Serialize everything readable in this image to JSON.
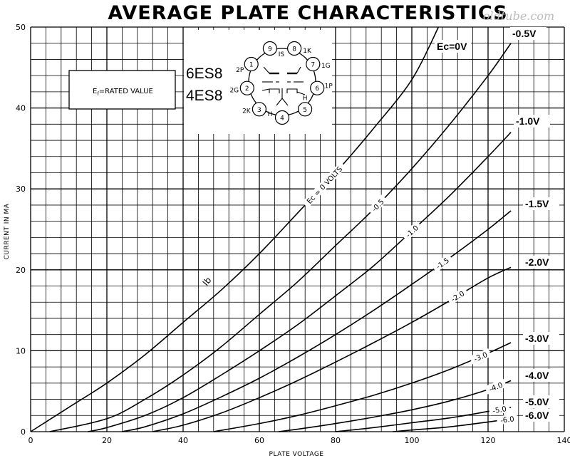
{
  "chart_data": {
    "type": "line",
    "title": "AVERAGE PLATE CHARACTERISTICS",
    "xlabel": "PLATE VOLTAGE",
    "ylabel": "CURRENT IN MA",
    "xlim": [
      0,
      140
    ],
    "ylim": [
      0,
      50
    ],
    "x_ticks": [
      0,
      20,
      40,
      60,
      80,
      100,
      120,
      140
    ],
    "y_ticks": [
      0,
      10,
      20,
      30,
      40,
      50
    ],
    "grid": true,
    "curve_variable": "Ib",
    "series": [
      {
        "name": "Ec=0",
        "inline_label": "Ec = 0 VOLTS",
        "right_label": "Ec=0V",
        "x": [
          0,
          10,
          20,
          30,
          40,
          50,
          60,
          70,
          80,
          90,
          100,
          107
        ],
        "y": [
          0,
          3.0,
          6.0,
          9.5,
          13.5,
          17.5,
          22,
          27,
          32,
          37.5,
          43.5,
          50
        ]
      },
      {
        "name": "-0.5",
        "inline_label": "-0.5",
        "right_label": "-0.5V",
        "x": [
          5,
          20,
          30,
          40,
          50,
          60,
          70,
          80,
          90,
          100,
          110,
          120,
          126
        ],
        "y": [
          0,
          1.6,
          4.0,
          7.0,
          10.5,
          14.5,
          18.5,
          23,
          27.5,
          32.5,
          38,
          44,
          48
        ]
      },
      {
        "name": "-1.0",
        "inline_label": "-1.0",
        "right_label": "-1.0V",
        "x": [
          15,
          20,
          30,
          40,
          50,
          60,
          70,
          80,
          90,
          100,
          110,
          120,
          126
        ],
        "y": [
          0,
          0.5,
          2.0,
          4.2,
          7.0,
          10.0,
          13.2,
          16.8,
          20.5,
          24.8,
          29.2,
          34,
          37
        ]
      },
      {
        "name": "-1.5",
        "inline_label": "-1.5",
        "right_label": "-1.5V",
        "x": [
          24,
          30,
          40,
          50,
          60,
          70,
          80,
          90,
          100,
          110,
          120,
          126
        ],
        "y": [
          0,
          0.6,
          2.2,
          4.3,
          6.6,
          9.2,
          12.0,
          15.0,
          18.2,
          21.5,
          25.0,
          27.3
        ]
      },
      {
        "name": "-2.0",
        "inline_label": "-2.0",
        "right_label": "-2.0V",
        "x": [
          32,
          40,
          50,
          60,
          70,
          80,
          90,
          100,
          110,
          120,
          126
        ],
        "y": [
          0,
          0.8,
          2.3,
          4.2,
          6.3,
          8.6,
          11.0,
          13.5,
          16.2,
          19.0,
          20.3
        ]
      },
      {
        "name": "-3.0",
        "inline_label": "-3.0",
        "right_label": "-3.0V",
        "x": [
          48,
          60,
          70,
          80,
          90,
          100,
          110,
          120,
          126
        ],
        "y": [
          0,
          1.0,
          2.0,
          3.2,
          4.5,
          6.0,
          7.7,
          9.7,
          11.0
        ]
      },
      {
        "name": "-4.0",
        "inline_label": "-4.0",
        "right_label": "-4.0V",
        "x": [
          65,
          70,
          80,
          90,
          100,
          110,
          120,
          126
        ],
        "y": [
          0,
          0.3,
          1.0,
          1.8,
          2.7,
          3.8,
          5.2,
          6.3
        ]
      },
      {
        "name": "-5.0",
        "inline_label": "-5.0",
        "right_label": "-5.0V",
        "x": [
          80,
          90,
          100,
          110,
          120,
          126
        ],
        "y": [
          0,
          0.5,
          1.1,
          1.7,
          2.5,
          3.0
        ]
      },
      {
        "name": "-6.0",
        "inline_label": "-6.0",
        "right_label": "-6.0V",
        "x": [
          95,
          100,
          110,
          120,
          126
        ],
        "y": [
          0,
          0.2,
          0.6,
          1.2,
          1.6
        ]
      }
    ]
  },
  "watermark": "oldtube.com",
  "note": {
    "text": "Ef=RATED VALUE",
    "prefix": "E",
    "sub": "f",
    "rest": "=RATED VALUE"
  },
  "tube_names": [
    "6ES8",
    "4ES8"
  ],
  "pins": [
    {
      "num": "1",
      "label": "2P"
    },
    {
      "num": "2",
      "label": "2G"
    },
    {
      "num": "3",
      "label": "2K"
    },
    {
      "num": "4",
      "label": "H"
    },
    {
      "num": "5",
      "label": "H"
    },
    {
      "num": "6",
      "label": "1P"
    },
    {
      "num": "7",
      "label": "1G"
    },
    {
      "num": "8",
      "label": "1K"
    },
    {
      "num": "9",
      "label": "IS"
    }
  ]
}
